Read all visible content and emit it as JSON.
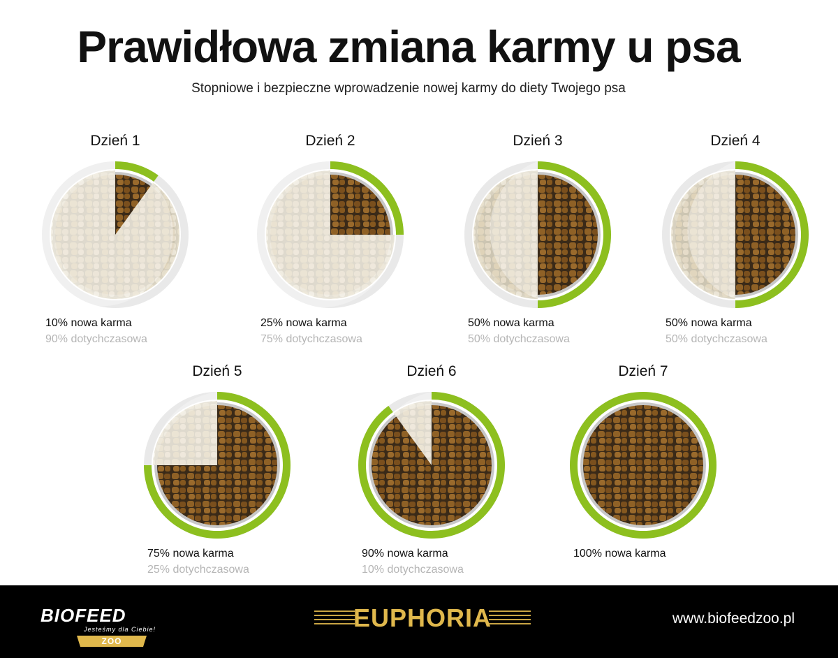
{
  "title": "Prawidłowa zmiana karmy u psa",
  "subtitle": "Stopniowe i bezpieczne wprowadzenie nowej karmy do diety Twojego psa",
  "colors": {
    "accent": "#8dbf1f",
    "ring": "#e9e9e9",
    "new_food": "#8a5a22",
    "old_food": "#e6dfcd"
  },
  "days": [
    {
      "label": "Dzień 1",
      "new_percent": 10,
      "new_text": "10% nowa karma",
      "old_text": "90% dotychczasowa"
    },
    {
      "label": "Dzień 2",
      "new_percent": 25,
      "new_text": "25% nowa karma",
      "old_text": "75% dotychczasowa"
    },
    {
      "label": "Dzień 3",
      "new_percent": 50,
      "new_text": "50% nowa karma",
      "old_text": "50% dotychczasowa"
    },
    {
      "label": "Dzień 4",
      "new_percent": 50,
      "new_text": "50% nowa karma",
      "old_text": "50% dotychczasowa"
    },
    {
      "label": "Dzień 5",
      "new_percent": 75,
      "new_text": "75% nowa karma",
      "old_text": "25% dotychczasowa"
    },
    {
      "label": "Dzień 6",
      "new_percent": 90,
      "new_text": "90% nowa karma",
      "old_text": "10% dotychczasowa"
    },
    {
      "label": "Dzień 7",
      "new_percent": 100,
      "new_text": "100% nowa karma",
      "old_text": ""
    }
  ],
  "footer": {
    "brand": "BIOFEED",
    "tagline": "Jesteśmy dla Ciebie!",
    "zoo": "ZOO",
    "product": "EUPHORIA",
    "url": "www.biofeedzoo.pl"
  }
}
